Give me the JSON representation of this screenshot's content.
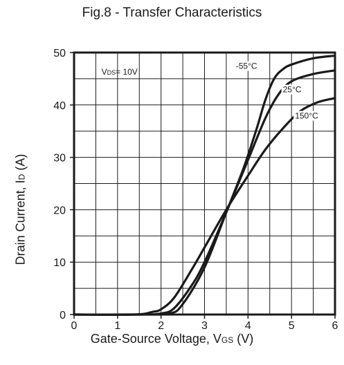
{
  "chart_data": {
    "type": "line",
    "title": "Fig.8 - Transfer Characteristics",
    "xlabel": {
      "main": "Gate-Source Voltage, V",
      "sub": "GS",
      "unit": " (V)"
    },
    "ylabel": {
      "main": "Drain Current, I",
      "sub": "D",
      "unit": " (A)"
    },
    "annotation": {
      "main": "V",
      "sub": "DS",
      "rest": "= 10V"
    },
    "xlim": [
      0,
      6
    ],
    "ylim": [
      0,
      50
    ],
    "xticks": [
      0,
      1,
      2,
      3,
      4,
      5,
      6
    ],
    "yticks": [
      0,
      10,
      20,
      30,
      40,
      50
    ],
    "grid": true,
    "series": [
      {
        "name": "-55°C",
        "x": [
          0,
          1.5,
          2.2,
          2.5,
          3.0,
          3.5,
          3.9,
          4.2,
          4.4,
          4.6,
          4.8,
          5.0,
          5.5,
          6.0
        ],
        "y": [
          0,
          0,
          0.2,
          2,
          9,
          19.5,
          28,
          35.5,
          41,
          45,
          46.8,
          47.7,
          48.9,
          49.4
        ]
      },
      {
        "name": "25°C",
        "x": [
          0,
          1.5,
          2.0,
          2.3,
          2.7,
          3.0,
          3.5,
          4.0,
          4.4,
          4.7,
          5.0,
          5.5,
          6.0
        ],
        "y": [
          0,
          0,
          0.2,
          1.2,
          5.5,
          10,
          19.5,
          29.5,
          37.5,
          42,
          44.5,
          45.9,
          46.6
        ]
      },
      {
        "name": "150°C",
        "x": [
          0,
          1.4,
          1.8,
          2.0,
          2.3,
          2.7,
          3.0,
          3.5,
          4.0,
          4.4,
          4.8,
          5.2,
          5.6,
          6.0
        ],
        "y": [
          0,
          0,
          0.5,
          1,
          3.2,
          8.5,
          12.8,
          20,
          26.5,
          31.5,
          35.5,
          38.8,
          40.5,
          41.3
        ]
      }
    ]
  }
}
